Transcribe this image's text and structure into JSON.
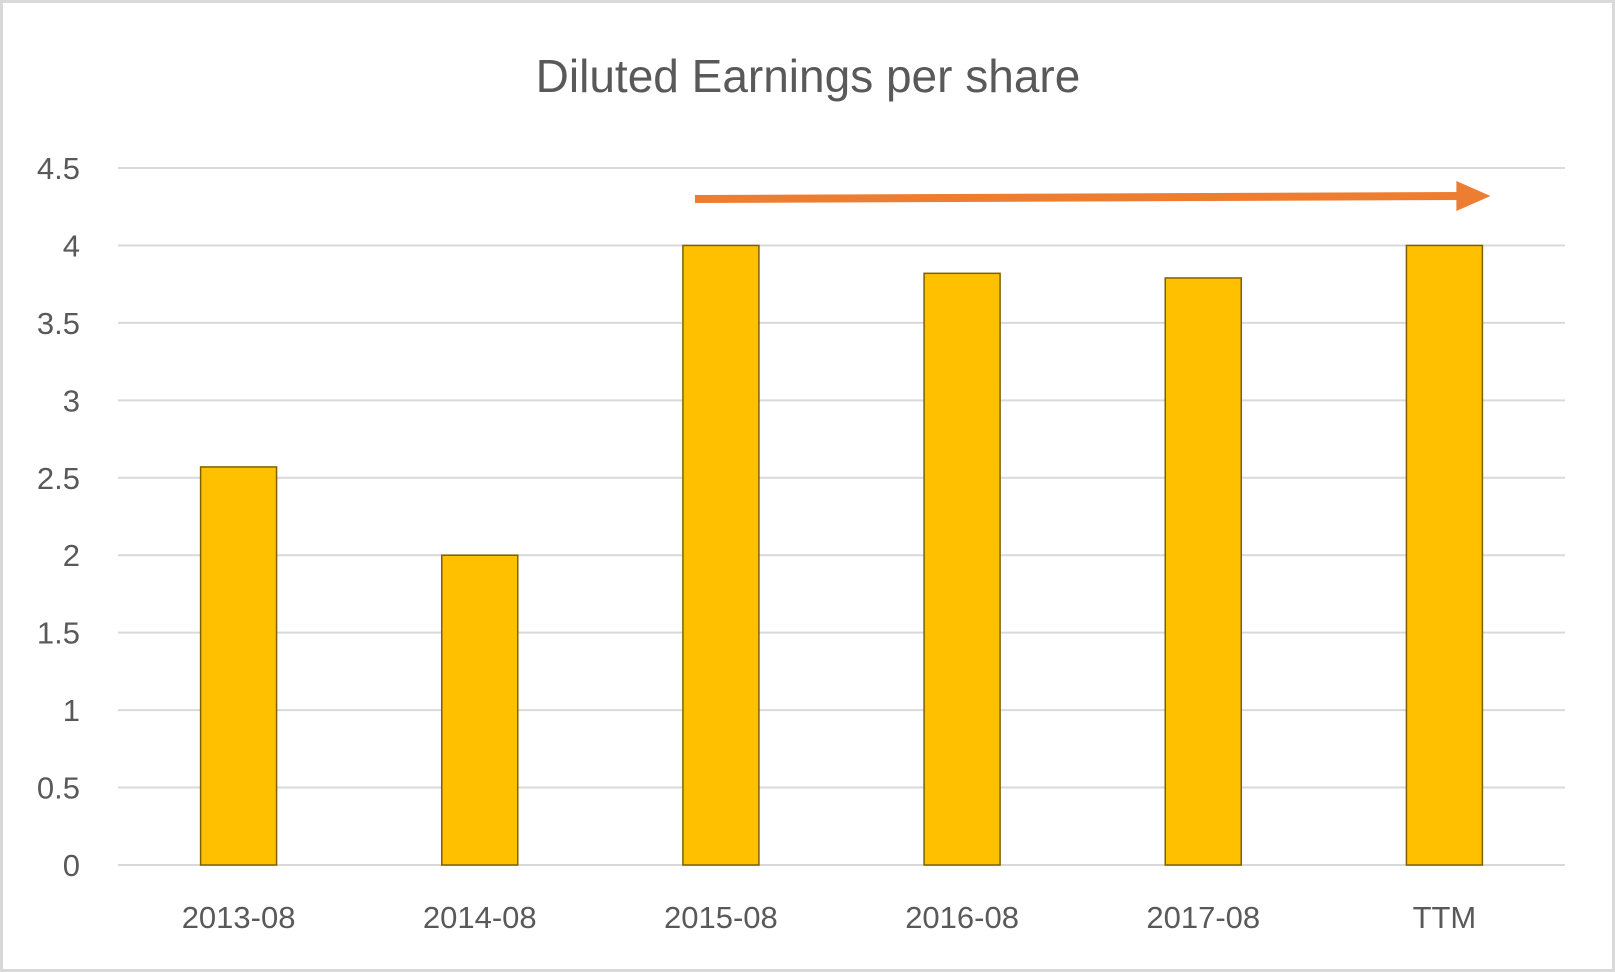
{
  "chart_data": {
    "type": "bar",
    "title": "Diluted Earnings per share",
    "xlabel": "",
    "ylabel": "",
    "categories": [
      "2013-08",
      "2014-08",
      "2015-08",
      "2016-08",
      "2017-08",
      "TTM"
    ],
    "values": [
      2.57,
      2.0,
      4.0,
      3.82,
      3.79,
      4.0
    ],
    "ylim": [
      0,
      4.5
    ],
    "yticks": [
      "0",
      "0.5",
      "1",
      "1.5",
      "2",
      "2.5",
      "3",
      "3.5",
      "4",
      "4.5"
    ],
    "grid": true,
    "legend": "none",
    "colors": {
      "bar_fill": "#FFC000",
      "bar_stroke": "#7F6000",
      "gridline": "#d9d9d9",
      "axis_line": "#d9d9d9",
      "trend_arrow": "#ED7D31"
    },
    "annotations": [
      {
        "kind": "trend-arrow",
        "direction": "right",
        "from_category": "2015-08",
        "to_category": "TTM"
      }
    ]
  }
}
